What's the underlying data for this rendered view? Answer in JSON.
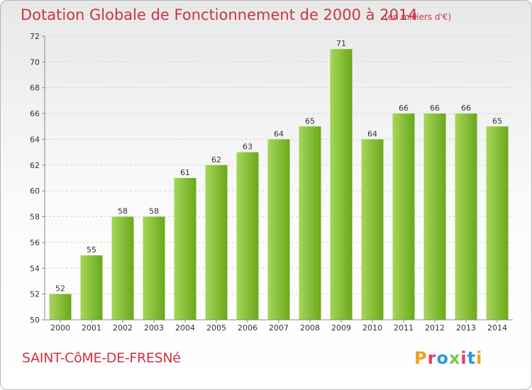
{
  "header": {
    "title": "Dotation Globale de Fonctionnement de 2000 à 2014",
    "subtitle": "(en milliers d'€)"
  },
  "footer": {
    "city": "SAINT-CôME-DE-FRESNé",
    "brand": "Proxiti"
  },
  "colors": {
    "title": "#cc3344",
    "bar_light": "#a6d65a",
    "bar_dark": "#6aa81a",
    "brand_letters": [
      "#f0a020",
      "#e83a6a",
      "#2a9ad6",
      "#7ac943",
      "#e83a6a",
      "#2a9ad6",
      "#f0a020"
    ]
  },
  "chart_data": {
    "type": "bar",
    "title": "Dotation Globale de Fonctionnement de 2000 à 2014",
    "subtitle": "(en milliers d'€)",
    "categories": [
      "2000",
      "2001",
      "2002",
      "2003",
      "2004",
      "2005",
      "2006",
      "2007",
      "2008",
      "2009",
      "2010",
      "2011",
      "2012",
      "2013",
      "2014"
    ],
    "values": [
      52,
      55,
      58,
      58,
      61,
      62,
      63,
      64,
      65,
      71,
      64,
      66,
      66,
      66,
      65
    ],
    "ylim": [
      50,
      72
    ],
    "yticks": [
      50,
      52,
      54,
      56,
      58,
      60,
      62,
      64,
      66,
      68,
      70,
      72
    ],
    "grid": true,
    "data_labels": true,
    "xlabel": "",
    "ylabel": ""
  }
}
